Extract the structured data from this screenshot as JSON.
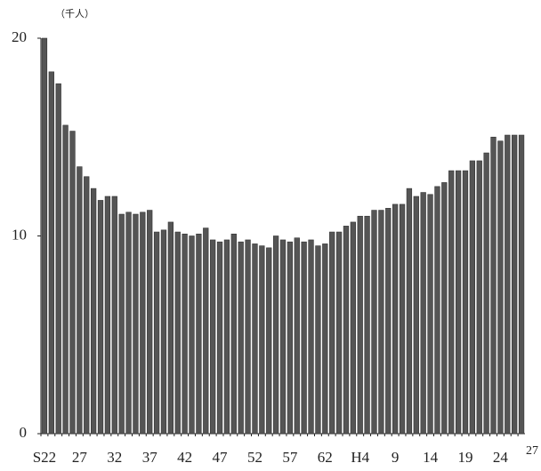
{
  "chart_data": {
    "type": "bar",
    "unit_label": "（千人）",
    "categories": [
      "S22",
      null,
      null,
      null,
      null,
      "27",
      null,
      null,
      null,
      null,
      "32",
      null,
      null,
      null,
      null,
      "37",
      null,
      null,
      null,
      null,
      "42",
      null,
      null,
      null,
      null,
      "47",
      null,
      null,
      null,
      null,
      "52",
      null,
      null,
      null,
      null,
      "57",
      null,
      null,
      null,
      null,
      "62",
      null,
      null,
      null,
      null,
      "H4",
      null,
      null,
      null,
      null,
      "9",
      null,
      null,
      null,
      null,
      "14",
      null,
      null,
      null,
      null,
      "19",
      null,
      null,
      null,
      null,
      "24",
      null,
      null,
      "27"
    ],
    "values": [
      20.0,
      18.3,
      17.7,
      15.6,
      15.3,
      13.5,
      13.0,
      12.4,
      11.8,
      12.0,
      12.0,
      11.1,
      11.2,
      11.1,
      11.2,
      11.3,
      10.2,
      10.3,
      10.7,
      10.2,
      10.1,
      10.0,
      10.1,
      10.4,
      9.8,
      9.7,
      9.8,
      10.1,
      9.7,
      9.8,
      9.6,
      9.5,
      9.4,
      10.0,
      9.8,
      9.7,
      9.9,
      9.7,
      9.8,
      9.5,
      9.6,
      10.2,
      10.2,
      10.5,
      10.7,
      11.0,
      11.0,
      11.3,
      11.3,
      11.4,
      11.6,
      11.6,
      12.4,
      12.0,
      12.2,
      12.1,
      12.5,
      12.7,
      13.3,
      13.3,
      13.3,
      13.8,
      13.8,
      14.2,
      15.0,
      14.8,
      15.1,
      15.1,
      15.1
    ],
    "color": "#555555",
    "ylim": [
      0,
      20
    ],
    "yticks": [
      0,
      10,
      20
    ],
    "grid": false
  }
}
